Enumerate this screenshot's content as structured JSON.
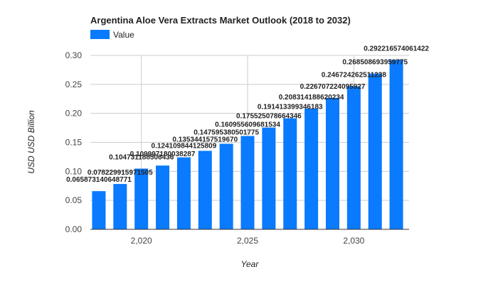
{
  "chart_data": {
    "type": "bar",
    "title": "Argentina Aloe Vera Extracts Market Outlook (2018 to 2032)",
    "xlabel": "Year",
    "ylabel": "USD USD Billion",
    "series": [
      {
        "name": "Value",
        "color": "#0a7aff",
        "x": [
          2018,
          2019,
          2020,
          2021,
          2022,
          2023,
          2024,
          2025,
          2026,
          2027,
          2028,
          2029,
          2030,
          2031,
          2032
        ],
        "values": [
          0.065873140648771,
          0.078229915971505,
          0.104731188506436,
          0.109997180038287,
          0.124109844125809,
          0.13534415751967,
          0.147595380501775,
          0.160955609681534,
          0.175525078664346,
          0.191413399346183,
          0.208314188620234,
          0.226707224095927,
          0.246724262511238,
          0.268508693959775,
          0.292216574061422
        ],
        "labels": [
          "0.065873140648771",
          "0.078229915971505",
          "0.104731188506436",
          "0.109997180038287",
          "0.124109844125809",
          "0.135344157519670",
          "0.147595380501775",
          "0.160955609681534",
          "0.175525078664346",
          "0.191413399346183",
          "0.208314188620234",
          "0.226707224095927",
          "0.246724262511238",
          "0.268508693959775",
          "0.292216574061422"
        ]
      }
    ],
    "ylim": [
      0,
      0.3
    ],
    "yticks": [
      "0.00",
      "0.05",
      "0.10",
      "0.15",
      "0.20",
      "0.25",
      "0.30"
    ],
    "ytick_values": [
      0,
      0.05,
      0.1,
      0.15,
      0.2,
      0.25,
      0.3
    ],
    "xticks": [
      "2,020",
      "2,025",
      "2,030"
    ],
    "xtick_values": [
      2020,
      2025,
      2030
    ],
    "grid": true,
    "legend_position": "top-left"
  }
}
